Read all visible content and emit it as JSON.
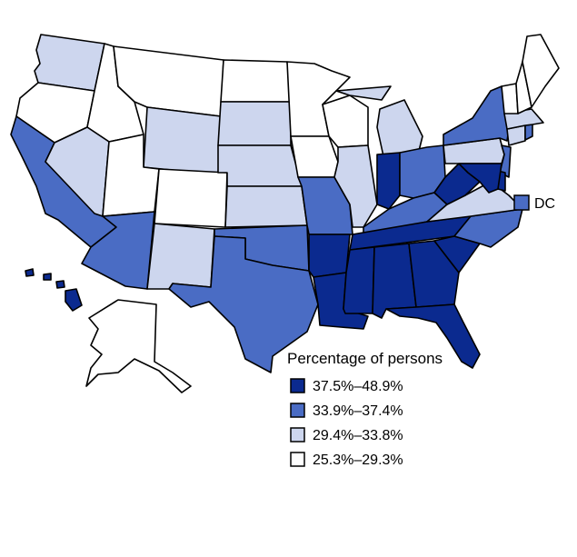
{
  "legend": {
    "title": "Percentage of persons",
    "classes": [
      {
        "label": "37.5%–48.9%",
        "color": "#0b2a8f"
      },
      {
        "label": "33.9%–37.4%",
        "color": "#4a6cc4"
      },
      {
        "label": "29.4%–33.8%",
        "color": "#cdd6ee"
      },
      {
        "label": "25.3%–29.3%",
        "color": "#ffffff"
      }
    ]
  },
  "dc": {
    "label": "DC",
    "class": 1
  },
  "states": [
    {
      "id": "WA",
      "class": 2
    },
    {
      "id": "OR",
      "class": 3
    },
    {
      "id": "CA",
      "class": 1
    },
    {
      "id": "ID",
      "class": 3
    },
    {
      "id": "NV",
      "class": 2
    },
    {
      "id": "MT",
      "class": 3
    },
    {
      "id": "WY",
      "class": 2
    },
    {
      "id": "UT",
      "class": 3
    },
    {
      "id": "AZ",
      "class": 1
    },
    {
      "id": "CO",
      "class": 3
    },
    {
      "id": "NM",
      "class": 2
    },
    {
      "id": "ND",
      "class": 3
    },
    {
      "id": "SD",
      "class": 2
    },
    {
      "id": "NE",
      "class": 2
    },
    {
      "id": "KS",
      "class": 2
    },
    {
      "id": "OK",
      "class": 1
    },
    {
      "id": "TX",
      "class": 1
    },
    {
      "id": "MN",
      "class": 3
    },
    {
      "id": "IA",
      "class": 3
    },
    {
      "id": "MO",
      "class": 1
    },
    {
      "id": "AR",
      "class": 0
    },
    {
      "id": "LA",
      "class": 0
    },
    {
      "id": "WI",
      "class": 3
    },
    {
      "id": "IL",
      "class": 2
    },
    {
      "id": "MI",
      "class": 2
    },
    {
      "id": "IN",
      "class": 0
    },
    {
      "id": "OH",
      "class": 1
    },
    {
      "id": "KY",
      "class": 1
    },
    {
      "id": "TN",
      "class": 0
    },
    {
      "id": "MS",
      "class": 0
    },
    {
      "id": "AL",
      "class": 0
    },
    {
      "id": "GA",
      "class": 0
    },
    {
      "id": "FL",
      "class": 0
    },
    {
      "id": "SC",
      "class": 0
    },
    {
      "id": "NC",
      "class": 1
    },
    {
      "id": "VA",
      "class": 2
    },
    {
      "id": "WV",
      "class": 0
    },
    {
      "id": "PA",
      "class": 2
    },
    {
      "id": "NY",
      "class": 1
    },
    {
      "id": "NJ",
      "class": 1
    },
    {
      "id": "DE",
      "class": 0
    },
    {
      "id": "MD",
      "class": 0
    },
    {
      "id": "CT",
      "class": 2
    },
    {
      "id": "RI",
      "class": 1
    },
    {
      "id": "MA",
      "class": 2
    },
    {
      "id": "VT",
      "class": 3
    },
    {
      "id": "NH",
      "class": 3
    },
    {
      "id": "ME",
      "class": 3
    },
    {
      "id": "AK",
      "class": 3
    },
    {
      "id": "HI",
      "class": 0
    }
  ]
}
